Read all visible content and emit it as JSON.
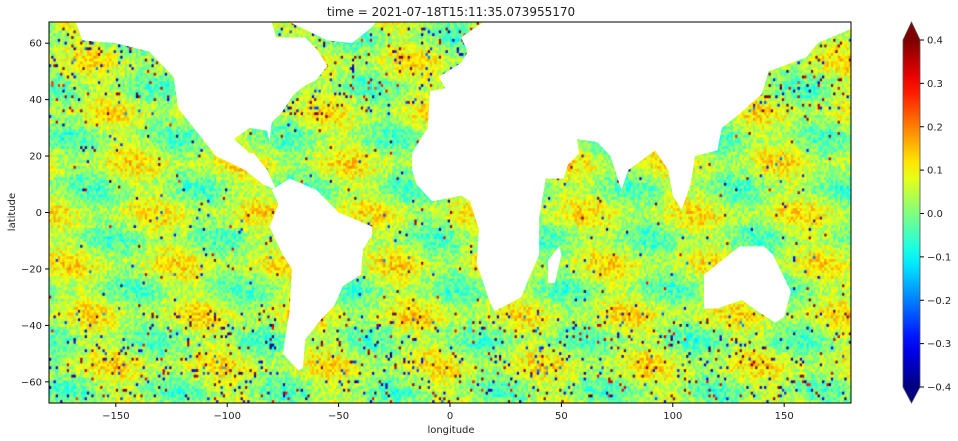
{
  "chart_data": {
    "type": "heatmap",
    "title": "time = 2021-07-18T15:11:35.073955170",
    "xlabel": "longitude",
    "ylabel": "latitude",
    "xlim": [
      -180,
      180
    ],
    "ylim": [
      -67.5,
      67.5
    ],
    "xticks": [
      "−150",
      "−100",
      "−50",
      "0",
      "50",
      "100",
      "150"
    ],
    "xtick_values": [
      -150,
      -100,
      -50,
      0,
      50,
      100,
      150
    ],
    "yticks": [
      "−60",
      "−40",
      "−20",
      "0",
      "20",
      "40",
      "60"
    ],
    "ytick_values": [
      -60,
      -40,
      -20,
      0,
      20,
      40,
      60
    ],
    "colormap": "jet",
    "color_range": [
      -0.4,
      0.4
    ],
    "colorbar_extend": "both",
    "colorbar_ticks": [
      "0.4",
      "0.3",
      "0.2",
      "0.1",
      "0.0",
      "−0.1",
      "−0.2",
      "−0.3",
      "−0.4"
    ],
    "colorbar_tick_values": [
      0.4,
      0.3,
      0.2,
      0.1,
      0.0,
      -0.1,
      -0.2,
      -0.3,
      -0.4
    ],
    "land_color": "#ffffff",
    "grid": false
  }
}
